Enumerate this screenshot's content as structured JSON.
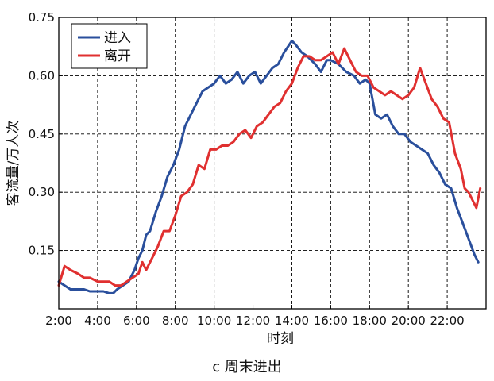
{
  "caption": "c 周末进出",
  "chart_data": {
    "type": "line",
    "title": "",
    "xlabel": "时刻",
    "ylabel": "客流量/万人次",
    "x_unit": "hours",
    "xlim": [
      2,
      24
    ],
    "ylim": [
      0,
      0.75
    ],
    "x_ticks": [
      2,
      4,
      6,
      8,
      10,
      12,
      14,
      16,
      18,
      20,
      22
    ],
    "x_tick_labels": [
      "2:00",
      "4:00",
      "6:00",
      "8:00",
      "10:00",
      "12:00",
      "14:00",
      "16:00",
      "18:00",
      "20:00",
      "22:00"
    ],
    "y_ticks": [
      0.15,
      0.3,
      0.45,
      0.6,
      0.75
    ],
    "y_tick_labels": [
      "0.15",
      "0.30",
      "0.45",
      "0.60",
      "0.75"
    ],
    "grid": true,
    "legend_position": "top-left",
    "series": [
      {
        "name": "进入",
        "color": "#2a4f9c",
        "x": [
          2.0,
          2.3,
          2.6,
          3.0,
          3.3,
          3.6,
          4.0,
          4.3,
          4.6,
          4.8,
          5.0,
          5.3,
          5.6,
          5.9,
          6.1,
          6.3,
          6.5,
          6.7,
          7.0,
          7.3,
          7.6,
          7.9,
          8.2,
          8.5,
          8.8,
          9.1,
          9.4,
          9.7,
          10.0,
          10.3,
          10.6,
          10.9,
          11.2,
          11.5,
          11.8,
          12.1,
          12.4,
          12.7,
          13.0,
          13.3,
          13.6,
          14.0,
          14.2,
          14.5,
          14.8,
          15.0,
          15.2,
          15.5,
          15.8,
          16.0,
          16.4,
          16.8,
          17.2,
          17.5,
          17.8,
          18.0,
          18.3,
          18.6,
          18.9,
          19.2,
          19.5,
          19.8,
          20.1,
          20.4,
          20.7,
          21.0,
          21.3,
          21.6,
          21.9,
          22.2,
          22.5,
          22.8,
          23.1,
          23.4,
          23.6
        ],
        "values": [
          0.07,
          0.06,
          0.05,
          0.05,
          0.05,
          0.045,
          0.045,
          0.045,
          0.04,
          0.04,
          0.05,
          0.06,
          0.07,
          0.1,
          0.13,
          0.15,
          0.19,
          0.2,
          0.25,
          0.29,
          0.34,
          0.37,
          0.41,
          0.47,
          0.5,
          0.53,
          0.56,
          0.57,
          0.58,
          0.6,
          0.58,
          0.59,
          0.61,
          0.58,
          0.6,
          0.61,
          0.58,
          0.6,
          0.62,
          0.63,
          0.66,
          0.69,
          0.68,
          0.66,
          0.65,
          0.64,
          0.63,
          0.61,
          0.64,
          0.64,
          0.63,
          0.61,
          0.6,
          0.58,
          0.59,
          0.58,
          0.5,
          0.49,
          0.5,
          0.47,
          0.45,
          0.45,
          0.43,
          0.42,
          0.41,
          0.4,
          0.37,
          0.35,
          0.32,
          0.31,
          0.26,
          0.22,
          0.18,
          0.14,
          0.12
        ]
      },
      {
        "name": "离开",
        "color": "#e03030",
        "x": [
          2.0,
          2.3,
          2.6,
          3.0,
          3.3,
          3.6,
          4.0,
          4.3,
          4.6,
          4.9,
          5.2,
          5.5,
          5.8,
          6.1,
          6.3,
          6.5,
          6.8,
          7.1,
          7.4,
          7.7,
          8.0,
          8.3,
          8.6,
          8.9,
          9.2,
          9.5,
          9.8,
          10.1,
          10.4,
          10.7,
          11.0,
          11.3,
          11.6,
          11.9,
          12.2,
          12.5,
          12.8,
          13.1,
          13.4,
          13.7,
          14.0,
          14.3,
          14.6,
          14.9,
          15.2,
          15.5,
          15.8,
          16.1,
          16.4,
          16.7,
          17.0,
          17.3,
          17.6,
          17.9,
          18.2,
          18.5,
          18.8,
          19.1,
          19.4,
          19.7,
          20.0,
          20.3,
          20.6,
          20.9,
          21.2,
          21.5,
          21.8,
          22.1,
          22.4,
          22.7,
          22.9,
          23.1,
          23.3,
          23.5,
          23.7
        ],
        "values": [
          0.06,
          0.11,
          0.1,
          0.09,
          0.08,
          0.08,
          0.07,
          0.07,
          0.07,
          0.06,
          0.06,
          0.07,
          0.08,
          0.09,
          0.12,
          0.1,
          0.13,
          0.16,
          0.2,
          0.2,
          0.24,
          0.29,
          0.3,
          0.32,
          0.37,
          0.36,
          0.41,
          0.41,
          0.42,
          0.42,
          0.43,
          0.45,
          0.46,
          0.44,
          0.47,
          0.48,
          0.5,
          0.52,
          0.53,
          0.56,
          0.58,
          0.62,
          0.65,
          0.65,
          0.64,
          0.64,
          0.65,
          0.66,
          0.63,
          0.67,
          0.64,
          0.61,
          0.6,
          0.6,
          0.57,
          0.56,
          0.55,
          0.56,
          0.55,
          0.54,
          0.55,
          0.57,
          0.62,
          0.58,
          0.54,
          0.52,
          0.49,
          0.48,
          0.4,
          0.36,
          0.31,
          0.3,
          0.28,
          0.26,
          0.31
        ]
      }
    ]
  }
}
